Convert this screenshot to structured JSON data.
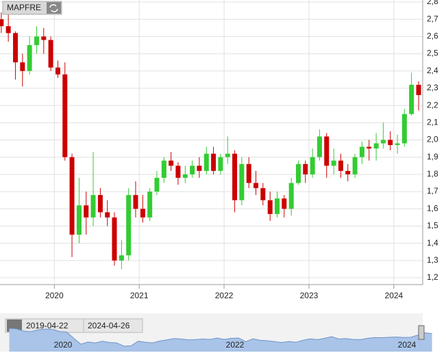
{
  "chart_data": {
    "type": "candlestick",
    "title": "MAPFRE",
    "x": [
      2019.375,
      2019.458,
      2019.542,
      2019.625,
      2019.708,
      2019.792,
      2019.875,
      2019.958,
      2020.042,
      2020.125,
      2020.208,
      2020.292,
      2020.375,
      2020.458,
      2020.542,
      2020.625,
      2020.708,
      2020.792,
      2020.875,
      2020.958,
      2021.042,
      2021.125,
      2021.208,
      2021.292,
      2021.375,
      2021.458,
      2021.542,
      2021.625,
      2021.708,
      2021.792,
      2021.875,
      2021.958,
      2022.042,
      2022.125,
      2022.208,
      2022.292,
      2022.375,
      2022.458,
      2022.542,
      2022.625,
      2022.708,
      2022.792,
      2022.875,
      2022.958,
      2023.042,
      2023.125,
      2023.208,
      2023.292,
      2023.375,
      2023.458,
      2023.542,
      2023.625,
      2023.708,
      2023.792,
      2023.875,
      2023.958,
      2024.042,
      2024.125,
      2024.208,
      2024.292
    ],
    "open": [
      2.7,
      2.66,
      2.62,
      2.45,
      2.4,
      2.55,
      2.6,
      2.58,
      2.42,
      2.38,
      1.9,
      1.45,
      1.62,
      1.55,
      1.68,
      1.58,
      1.55,
      1.3,
      1.33,
      1.68,
      1.6,
      1.55,
      1.7,
      1.78,
      1.88,
      1.85,
      1.78,
      1.8,
      1.85,
      1.82,
      1.92,
      1.82,
      1.9,
      1.92,
      1.65,
      1.86,
      1.75,
      1.72,
      1.65,
      1.57,
      1.66,
      1.6,
      1.75,
      1.86,
      1.8,
      1.9,
      2.02,
      1.85,
      1.88,
      1.82,
      1.8,
      1.9,
      1.96,
      1.95,
      1.98,
      2.0,
      1.97,
      1.98,
      2.15,
      2.32
    ],
    "high": [
      2.74,
      2.75,
      2.63,
      2.5,
      2.6,
      2.66,
      2.65,
      2.6,
      2.46,
      2.45,
      1.92,
      1.78,
      1.7,
      1.93,
      1.72,
      1.65,
      1.58,
      1.42,
      1.72,
      1.76,
      1.68,
      1.72,
      1.82,
      1.9,
      1.93,
      1.87,
      1.85,
      1.88,
      1.9,
      1.96,
      1.96,
      1.92,
      2.02,
      1.94,
      1.9,
      1.9,
      1.82,
      1.75,
      1.7,
      1.7,
      1.68,
      1.78,
      1.88,
      1.88,
      1.95,
      2.06,
      2.04,
      1.95,
      1.92,
      1.86,
      1.92,
      1.99,
      2.0,
      2.04,
      2.1,
      2.05,
      2.03,
      2.18,
      2.39,
      2.34
    ],
    "low": [
      2.62,
      2.57,
      2.35,
      2.31,
      2.38,
      2.5,
      2.5,
      2.4,
      2.36,
      1.88,
      1.32,
      1.4,
      1.45,
      1.5,
      1.55,
      1.5,
      1.27,
      1.25,
      1.3,
      1.55,
      1.52,
      1.53,
      1.68,
      1.75,
      1.82,
      1.74,
      1.75,
      1.78,
      1.78,
      1.8,
      1.8,
      1.8,
      1.86,
      1.58,
      1.62,
      1.72,
      1.68,
      1.62,
      1.53,
      1.55,
      1.55,
      1.56,
      1.74,
      1.75,
      1.78,
      1.88,
      1.78,
      1.8,
      1.78,
      1.76,
      1.78,
      1.86,
      1.88,
      1.88,
      1.95,
      1.94,
      1.92,
      1.96,
      2.14,
      2.17
    ],
    "close": [
      2.66,
      2.62,
      2.45,
      2.4,
      2.55,
      2.6,
      2.58,
      2.42,
      2.38,
      1.9,
      1.45,
      1.62,
      1.55,
      1.68,
      1.58,
      1.55,
      1.3,
      1.33,
      1.68,
      1.6,
      1.55,
      1.7,
      1.78,
      1.88,
      1.85,
      1.78,
      1.8,
      1.85,
      1.82,
      1.92,
      1.82,
      1.9,
      1.92,
      1.65,
      1.86,
      1.75,
      1.72,
      1.65,
      1.57,
      1.66,
      1.6,
      1.75,
      1.86,
      1.8,
      1.9,
      2.02,
      1.85,
      1.88,
      1.82,
      1.8,
      1.9,
      1.96,
      1.95,
      1.98,
      2.0,
      1.97,
      1.98,
      2.15,
      2.32,
      2.26
    ],
    "up_color": "#33cc33",
    "down_color": "#cc0000",
    "xlim": [
      2019.36,
      2024.34
    ],
    "xticks": [
      2020,
      2021,
      2022,
      2023,
      2024
    ],
    "ylim": [
      1.2,
      2.8
    ],
    "yticks": [
      {
        "value": 1.2,
        "label": "1,2"
      },
      {
        "value": 1.3,
        "label": "1,3"
      },
      {
        "value": 1.4,
        "label": "1,4"
      },
      {
        "value": 1.5,
        "label": "1,5"
      },
      {
        "value": 1.6,
        "label": "1,6"
      },
      {
        "value": 1.7,
        "label": "1,7"
      },
      {
        "value": 1.8,
        "label": "1,8"
      },
      {
        "value": 1.9,
        "label": "1,9"
      },
      {
        "value": 2.0,
        "label": "2,0"
      },
      {
        "value": 2.1,
        "label": "2,1"
      },
      {
        "value": 2.2,
        "label": "2,2"
      },
      {
        "value": 2.3,
        "label": "2,3"
      },
      {
        "value": 2.4,
        "label": "2,4"
      },
      {
        "value": 2.5,
        "label": "2,5"
      },
      {
        "value": 2.6,
        "label": "2,6"
      },
      {
        "value": 2.7,
        "label": "2,7"
      },
      {
        "value": 2.8,
        "label": "2,8"
      }
    ],
    "grid": true,
    "navigator": {
      "from": "2019-04-22",
      "to": "2024-04-26",
      "xticks": [
        2020,
        2022,
        2024
      ]
    }
  }
}
